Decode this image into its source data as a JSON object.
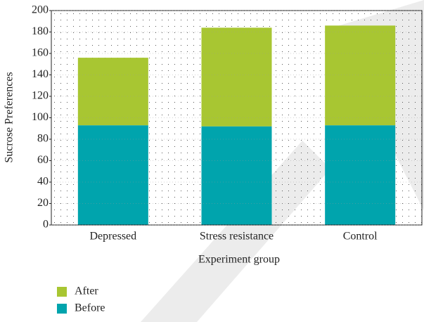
{
  "chart_data": {
    "type": "stacked_bar",
    "x_label": "Experiment group",
    "y_label": "Sucrose Preferences",
    "categories": [
      "Depressed",
      "Stress resistance",
      "Control"
    ],
    "series": [
      {
        "name": "Before",
        "color": "#00a4ad",
        "values": [
          93,
          92,
          93
        ]
      },
      {
        "name": "After",
        "color": "#a8c632",
        "values": [
          63,
          92,
          93
        ]
      }
    ],
    "ylim": [
      0,
      200
    ],
    "yticks": [
      0,
      20,
      40,
      60,
      80,
      100,
      120,
      140,
      160,
      180,
      200
    ],
    "grid": true
  }
}
